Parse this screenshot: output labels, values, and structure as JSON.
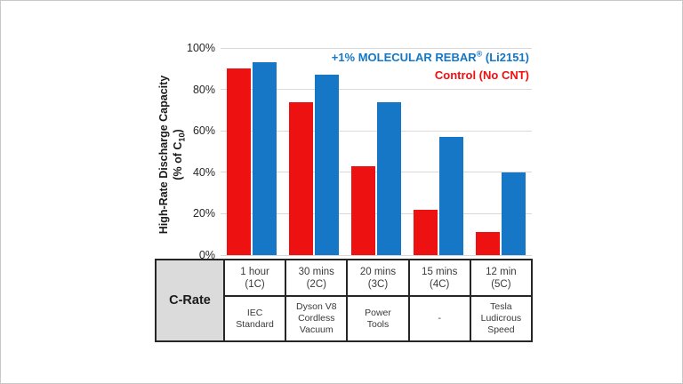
{
  "chart_data": {
    "type": "bar",
    "title": "",
    "categories": [
      "1 hour (1C)",
      "30 mins (2C)",
      "20 mins (3C)",
      "15 mins (4C)",
      "12 min (5C)"
    ],
    "series": [
      {
        "name": "Control (No CNT)",
        "color": "#EE1111",
        "values": [
          90,
          74,
          43,
          22,
          11
        ]
      },
      {
        "name": "+1% MOLECULAR REBAR® (Li2151)",
        "color": "#1577C5",
        "values": [
          93,
          87,
          74,
          57,
          40
        ]
      }
    ],
    "ylabel": "High-Rate Discharge Capacity (% of C10)",
    "xlabel": "C-Rate",
    "ylim": [
      0,
      100
    ],
    "ytick_values": [
      100,
      80,
      60,
      40,
      20,
      0
    ],
    "ytick_labels": [
      "100%",
      "80%",
      "60%",
      "40%",
      "20%",
      "0%"
    ],
    "grid": true,
    "gridline_color": "#D9D9D9",
    "legend_position": "top-right-inside"
  },
  "ylabel": {
    "line1": "High-Rate Discharge Capacity",
    "line2_prefix": "(% of C",
    "line2_sub": "10",
    "line2_suffix": ")"
  },
  "legend": {
    "rebar": {
      "prefix": "+1% MOLECULAR REBAR",
      "reg": "®",
      "suffix": " (Li2151)",
      "color": "#1577C5"
    },
    "control": {
      "label": "Control (No CNT)",
      "color": "#EE1111"
    }
  },
  "table": {
    "row_header": "C-Rate",
    "columns": [
      {
        "rate": "1 hour\n(1C)",
        "use": "IEC\nStandard"
      },
      {
        "rate": "30 mins\n(2C)",
        "use": "Dyson V8\nCordless\nVacuum"
      },
      {
        "rate": "20 mins\n(3C)",
        "use": "Power\nTools"
      },
      {
        "rate": "15 mins\n(4C)",
        "use": "-"
      },
      {
        "rate": "12 min\n(5C)",
        "use": "Tesla\nLudicrous\nSpeed"
      }
    ]
  },
  "colors": {
    "control_red": "#EE1111",
    "rebar_blue": "#1577C5",
    "gridline": "#D9D9D9",
    "table_border": "#262626",
    "header_fill": "#DBDBDB",
    "page_border": "#C8C8C8"
  }
}
